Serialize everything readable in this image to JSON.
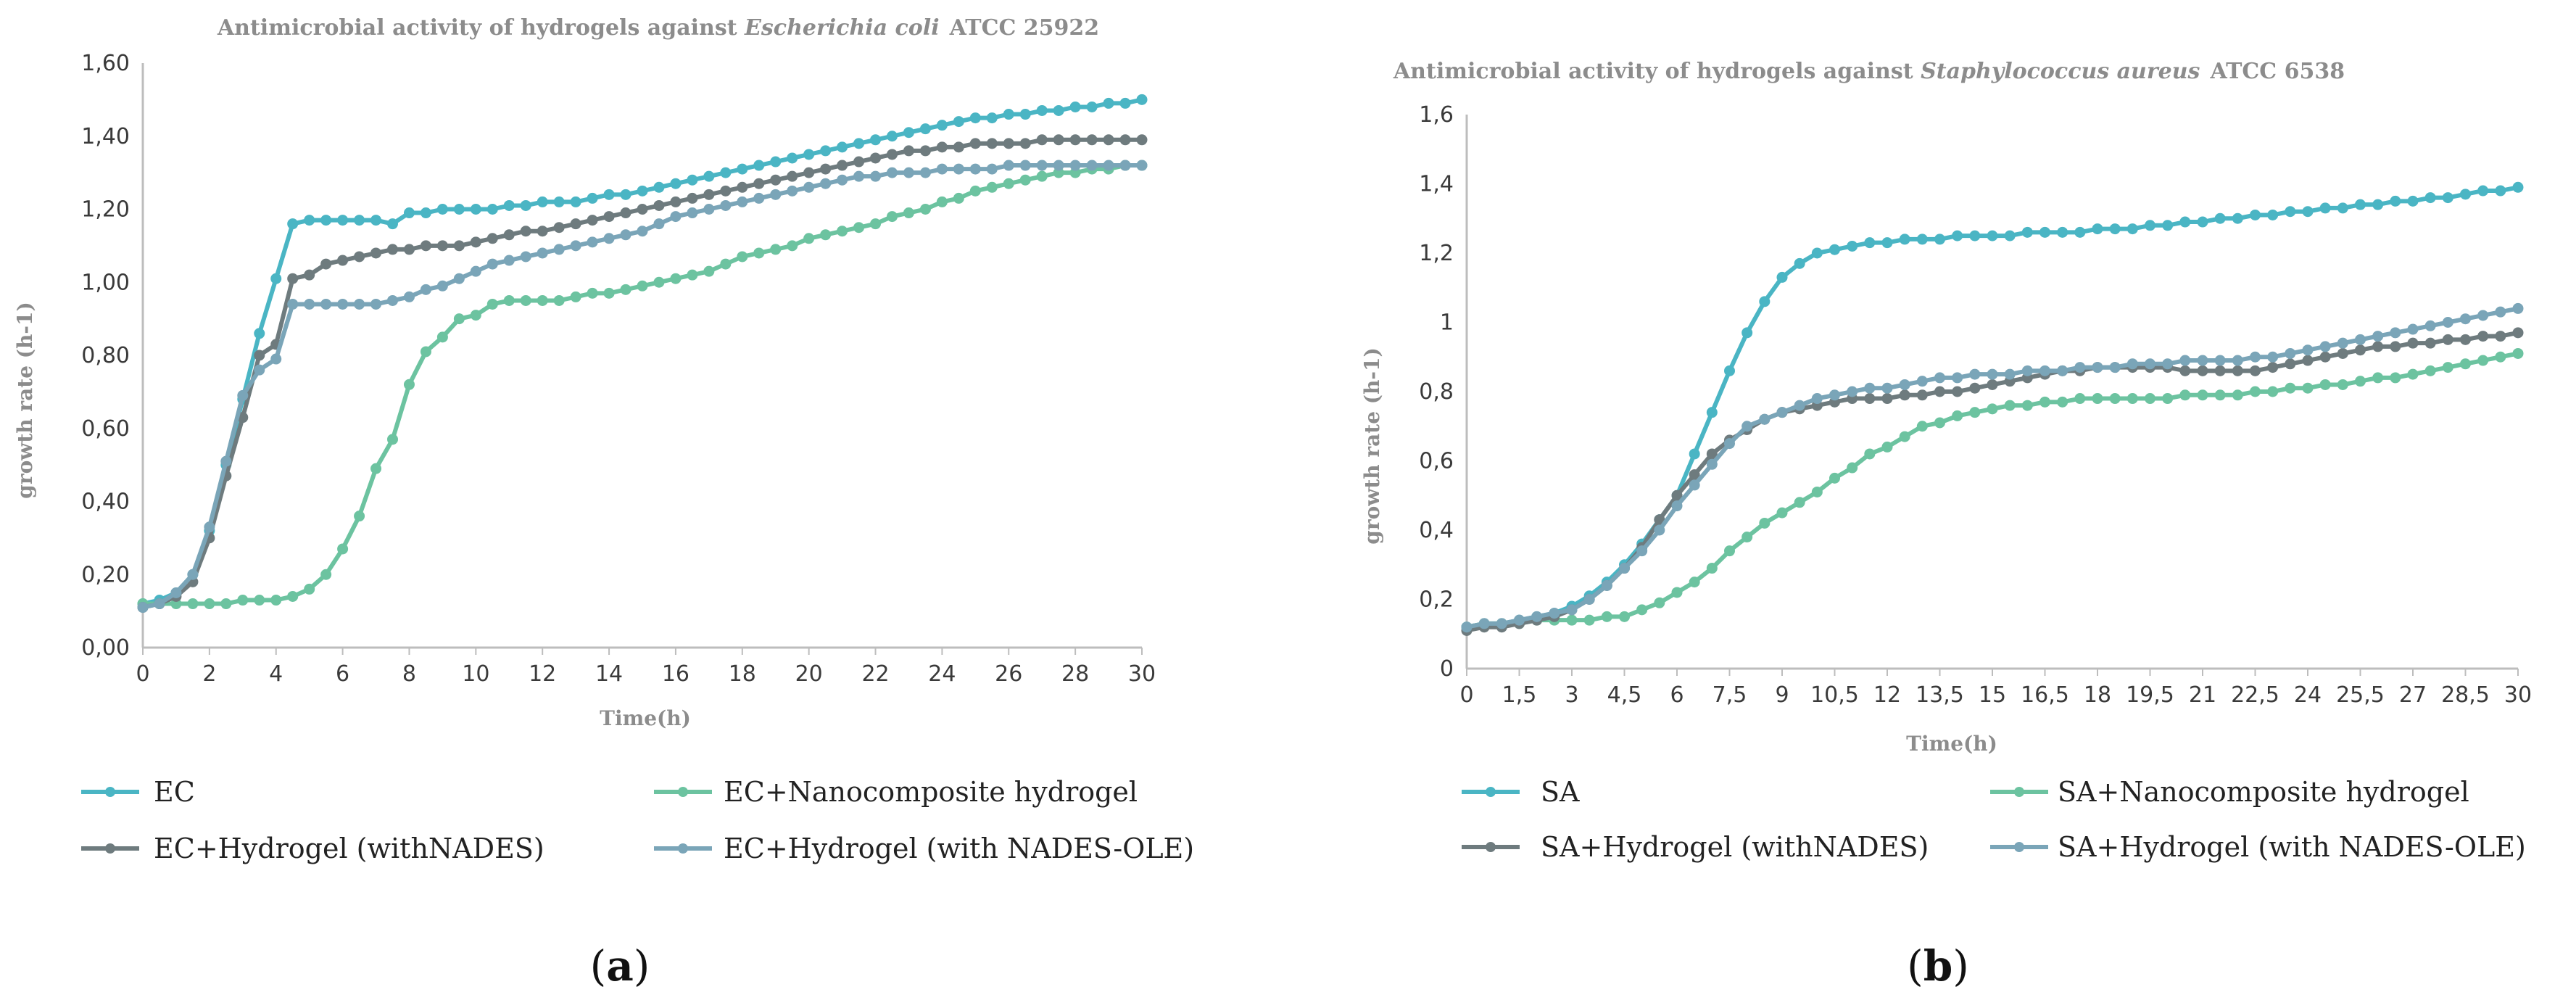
{
  "chart_data": [
    {
      "type": "line",
      "panel_label": "a",
      "title_prefix": "Antimicrobial activity of hydrogels against ",
      "title_organism": "Escherichia coli",
      "title_suffix": "ATCC 25922",
      "xlabel": "Time(h)",
      "ylabel": "growth rate (h-1)",
      "xlim": [
        0,
        30
      ],
      "ylim": [
        0,
        1.6
      ],
      "x_ticks": [
        "0",
        "2",
        "4",
        "6",
        "8",
        "10",
        "12",
        "14",
        "16",
        "18",
        "20",
        "22",
        "24",
        "26",
        "28",
        "30"
      ],
      "y_ticks": [
        "0,00",
        "0,20",
        "0,40",
        "0,60",
        "0,80",
        "1,00",
        "1,20",
        "1,40",
        "1,60"
      ],
      "grid": false,
      "legend_position": "bottom",
      "x": [
        0,
        0.5,
        1,
        1.5,
        2,
        2.5,
        3,
        3.5,
        4,
        4.5,
        5,
        5.5,
        6,
        6.5,
        7,
        7.5,
        8,
        8.5,
        9,
        9.5,
        10,
        10.5,
        11,
        11.5,
        12,
        12.5,
        13,
        13.5,
        14,
        14.5,
        15,
        15.5,
        16,
        16.5,
        17,
        17.5,
        18,
        18.5,
        19,
        19.5,
        20,
        20.5,
        21,
        21.5,
        22,
        22.5,
        23,
        23.5,
        24,
        24.5,
        25,
        25.5,
        26,
        26.5,
        27,
        27.5,
        28,
        28.5,
        29,
        29.5,
        30
      ],
      "series": [
        {
          "name": "EC",
          "color": "#4ab5c4",
          "values": [
            0.12,
            0.13,
            0.15,
            0.2,
            0.32,
            0.5,
            0.68,
            0.86,
            1.01,
            1.16,
            1.17,
            1.17,
            1.17,
            1.17,
            1.17,
            1.16,
            1.19,
            1.19,
            1.2,
            1.2,
            1.2,
            1.2,
            1.21,
            1.21,
            1.22,
            1.22,
            1.22,
            1.23,
            1.24,
            1.24,
            1.25,
            1.26,
            1.27,
            1.28,
            1.29,
            1.3,
            1.31,
            1.32,
            1.33,
            1.34,
            1.35,
            1.36,
            1.37,
            1.38,
            1.39,
            1.4,
            1.41,
            1.42,
            1.43,
            1.44,
            1.45,
            1.45,
            1.46,
            1.46,
            1.47,
            1.47,
            1.48,
            1.48,
            1.49,
            1.49,
            1.5
          ]
        },
        {
          "name": "EC+Nanocomposite hydrogel",
          "color": "#6cc3a0",
          "values": [
            0.12,
            0.12,
            0.12,
            0.12,
            0.12,
            0.12,
            0.13,
            0.13,
            0.13,
            0.14,
            0.16,
            0.2,
            0.27,
            0.36,
            0.49,
            0.57,
            0.72,
            0.81,
            0.85,
            0.9,
            0.91,
            0.94,
            0.95,
            0.95,
            0.95,
            0.95,
            0.96,
            0.97,
            0.97,
            0.98,
            0.99,
            1.0,
            1.01,
            1.02,
            1.03,
            1.05,
            1.07,
            1.08,
            1.09,
            1.1,
            1.12,
            1.13,
            1.14,
            1.15,
            1.16,
            1.18,
            1.19,
            1.2,
            1.22,
            1.23,
            1.25,
            1.26,
            1.27,
            1.28,
            1.29,
            1.3,
            1.3,
            1.31,
            1.31,
            1.32,
            1.32
          ]
        },
        {
          "name": "EC+Hydrogel (withNADES)",
          "color": "#6e7b7e",
          "values": [
            0.11,
            0.12,
            0.14,
            0.18,
            0.3,
            0.47,
            0.63,
            0.8,
            0.83,
            1.01,
            1.02,
            1.05,
            1.06,
            1.07,
            1.08,
            1.09,
            1.09,
            1.1,
            1.1,
            1.1,
            1.11,
            1.12,
            1.13,
            1.14,
            1.14,
            1.15,
            1.16,
            1.17,
            1.18,
            1.19,
            1.2,
            1.21,
            1.22,
            1.23,
            1.24,
            1.25,
            1.26,
            1.27,
            1.28,
            1.29,
            1.3,
            1.31,
            1.32,
            1.33,
            1.34,
            1.35,
            1.36,
            1.36,
            1.37,
            1.37,
            1.38,
            1.38,
            1.38,
            1.38,
            1.39,
            1.39,
            1.39,
            1.39,
            1.39,
            1.39,
            1.39
          ]
        },
        {
          "name": "EC+Hydrogel (with NADES-OLE)",
          "color": "#7aa5b8",
          "values": [
            0.11,
            0.12,
            0.15,
            0.2,
            0.33,
            0.51,
            0.69,
            0.76,
            0.79,
            0.94,
            0.94,
            0.94,
            0.94,
            0.94,
            0.94,
            0.95,
            0.96,
            0.98,
            0.99,
            1.01,
            1.03,
            1.05,
            1.06,
            1.07,
            1.08,
            1.09,
            1.1,
            1.11,
            1.12,
            1.13,
            1.14,
            1.16,
            1.18,
            1.19,
            1.2,
            1.21,
            1.22,
            1.23,
            1.24,
            1.25,
            1.26,
            1.27,
            1.28,
            1.29,
            1.29,
            1.3,
            1.3,
            1.3,
            1.31,
            1.31,
            1.31,
            1.31,
            1.32,
            1.32,
            1.32,
            1.32,
            1.32,
            1.32,
            1.32,
            1.32,
            1.32
          ]
        }
      ]
    },
    {
      "type": "line",
      "panel_label": "b",
      "title_prefix": "Antimicrobial activity of hydrogels against ",
      "title_organism": "Staphylococcus aureus",
      "title_suffix": "ATCC 6538",
      "xlabel": "Time(h)",
      "ylabel": "growth rate (h-1)",
      "xlim": [
        0,
        30
      ],
      "ylim": [
        0,
        1.6
      ],
      "x_ticks": [
        "0",
        "1,5",
        "3",
        "4,5",
        "6",
        "7,5",
        "9",
        "10,5",
        "12",
        "13,5",
        "15",
        "16,5",
        "18",
        "19,5",
        "21",
        "22,5",
        "24",
        "25,5",
        "27",
        "28,5",
        "30"
      ],
      "y_ticks": [
        "0",
        "0,2",
        "0,4",
        "0,6",
        "0,8",
        "1",
        "1,2",
        "1,4",
        "1,6"
      ],
      "grid": false,
      "legend_position": "bottom",
      "x": [
        0,
        0.5,
        1,
        1.5,
        2,
        2.5,
        3,
        3.5,
        4,
        4.5,
        5,
        5.5,
        6,
        6.5,
        7,
        7.5,
        8,
        8.5,
        9,
        9.5,
        10,
        10.5,
        11,
        11.5,
        12,
        12.5,
        13,
        13.5,
        14,
        14.5,
        15,
        15.5,
        16,
        16.5,
        17,
        17.5,
        18,
        18.5,
        19,
        19.5,
        20,
        20.5,
        21,
        21.5,
        22,
        22.5,
        23,
        23.5,
        24,
        24.5,
        25,
        25.5,
        26,
        26.5,
        27,
        27.5,
        28,
        28.5,
        29,
        29.5,
        30
      ],
      "series": [
        {
          "name": "SA",
          "color": "#4ab5c4",
          "values": [
            0.12,
            0.13,
            0.13,
            0.14,
            0.15,
            0.16,
            0.18,
            0.21,
            0.25,
            0.3,
            0.36,
            0.43,
            0.5,
            0.62,
            0.74,
            0.86,
            0.97,
            1.06,
            1.13,
            1.17,
            1.2,
            1.21,
            1.22,
            1.23,
            1.23,
            1.24,
            1.24,
            1.24,
            1.25,
            1.25,
            1.25,
            1.25,
            1.26,
            1.26,
            1.26,
            1.26,
            1.27,
            1.27,
            1.27,
            1.28,
            1.28,
            1.29,
            1.29,
            1.3,
            1.3,
            1.31,
            1.31,
            1.32,
            1.32,
            1.33,
            1.33,
            1.34,
            1.34,
            1.35,
            1.35,
            1.36,
            1.36,
            1.37,
            1.38,
            1.38,
            1.39
          ]
        },
        {
          "name": "SA+Nanocomposite hydrogel",
          "color": "#6cc3a0",
          "values": [
            0.12,
            0.13,
            0.13,
            0.13,
            0.14,
            0.14,
            0.14,
            0.14,
            0.15,
            0.15,
            0.17,
            0.19,
            0.22,
            0.25,
            0.29,
            0.34,
            0.38,
            0.42,
            0.45,
            0.48,
            0.51,
            0.55,
            0.58,
            0.62,
            0.64,
            0.67,
            0.7,
            0.71,
            0.73,
            0.74,
            0.75,
            0.76,
            0.76,
            0.77,
            0.77,
            0.78,
            0.78,
            0.78,
            0.78,
            0.78,
            0.78,
            0.79,
            0.79,
            0.79,
            0.79,
            0.8,
            0.8,
            0.81,
            0.81,
            0.82,
            0.82,
            0.83,
            0.84,
            0.84,
            0.85,
            0.86,
            0.87,
            0.88,
            0.89,
            0.9,
            0.91
          ]
        },
        {
          "name": "SA+Hydrogel (withNADES)",
          "color": "#6e7b7e",
          "values": [
            0.11,
            0.12,
            0.12,
            0.13,
            0.14,
            0.15,
            0.17,
            0.2,
            0.24,
            0.29,
            0.35,
            0.43,
            0.5,
            0.56,
            0.62,
            0.66,
            0.69,
            0.72,
            0.74,
            0.75,
            0.76,
            0.77,
            0.78,
            0.78,
            0.78,
            0.79,
            0.79,
            0.8,
            0.8,
            0.81,
            0.82,
            0.83,
            0.84,
            0.85,
            0.86,
            0.86,
            0.87,
            0.87,
            0.87,
            0.87,
            0.87,
            0.86,
            0.86,
            0.86,
            0.86,
            0.86,
            0.87,
            0.88,
            0.89,
            0.9,
            0.91,
            0.92,
            0.93,
            0.93,
            0.94,
            0.94,
            0.95,
            0.95,
            0.96,
            0.96,
            0.97
          ]
        },
        {
          "name": "SA+Hydrogel (with NADES-OLE)",
          "color": "#7aa5b8",
          "values": [
            0.12,
            0.13,
            0.13,
            0.14,
            0.15,
            0.16,
            0.17,
            0.2,
            0.24,
            0.29,
            0.34,
            0.4,
            0.47,
            0.53,
            0.59,
            0.65,
            0.7,
            0.72,
            0.74,
            0.76,
            0.78,
            0.79,
            0.8,
            0.81,
            0.81,
            0.82,
            0.83,
            0.84,
            0.84,
            0.85,
            0.85,
            0.85,
            0.86,
            0.86,
            0.86,
            0.87,
            0.87,
            0.87,
            0.88,
            0.88,
            0.88,
            0.89,
            0.89,
            0.89,
            0.89,
            0.9,
            0.9,
            0.91,
            0.92,
            0.93,
            0.94,
            0.95,
            0.96,
            0.97,
            0.98,
            0.99,
            1.0,
            1.01,
            1.02,
            1.03,
            1.04
          ]
        }
      ]
    }
  ]
}
